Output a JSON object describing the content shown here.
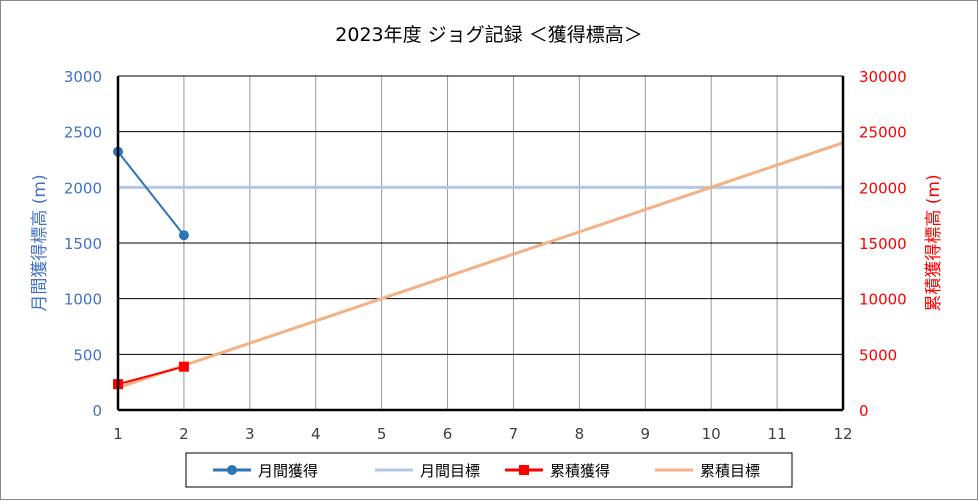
{
  "chart_data": {
    "type": "line",
    "title": "2023年度  ジョグ記録 ＜獲得標高＞",
    "xlabel": "",
    "ylabel_left": "月間獲得標高 (m)",
    "ylabel_right": "累積獲得標高 (m)",
    "x": [
      1,
      2,
      3,
      4,
      5,
      6,
      7,
      8,
      9,
      10,
      11,
      12
    ],
    "xlim": [
      1,
      12
    ],
    "ylim_left": [
      0,
      3000
    ],
    "ylim_right": [
      0,
      30000
    ],
    "yticks_left": [
      0,
      500,
      1000,
      1500,
      2000,
      2500,
      3000
    ],
    "yticks_right": [
      0,
      5000,
      10000,
      15000,
      20000,
      25000,
      30000
    ],
    "grid": true,
    "legend_position": "bottom",
    "series": [
      {
        "name": "月間獲得",
        "axis": "left",
        "color": "#2e75b6",
        "marker": "circle",
        "x": [
          1,
          2
        ],
        "values": [
          2320,
          1570
        ]
      },
      {
        "name": "月間目標",
        "axis": "left",
        "color": "#b4c7e7",
        "marker": "none",
        "x": [
          1,
          2,
          3,
          4,
          5,
          6,
          7,
          8,
          9,
          10,
          11,
          12
        ],
        "values": [
          2000,
          2000,
          2000,
          2000,
          2000,
          2000,
          2000,
          2000,
          2000,
          2000,
          2000,
          2000
        ]
      },
      {
        "name": "累積獲得",
        "axis": "right",
        "color": "#ff0000",
        "marker": "square",
        "x": [
          1,
          2
        ],
        "values": [
          2320,
          3890
        ]
      },
      {
        "name": "累積目標",
        "axis": "right",
        "color": "#f4b183",
        "marker": "none",
        "x": [
          1,
          2,
          3,
          4,
          5,
          6,
          7,
          8,
          9,
          10,
          11,
          12
        ],
        "values": [
          2000,
          4000,
          6000,
          8000,
          10000,
          12000,
          14000,
          16000,
          18000,
          20000,
          22000,
          24000
        ]
      }
    ],
    "colors": {
      "left_axis": "#4472c4",
      "right_axis": "#ff0000"
    }
  }
}
